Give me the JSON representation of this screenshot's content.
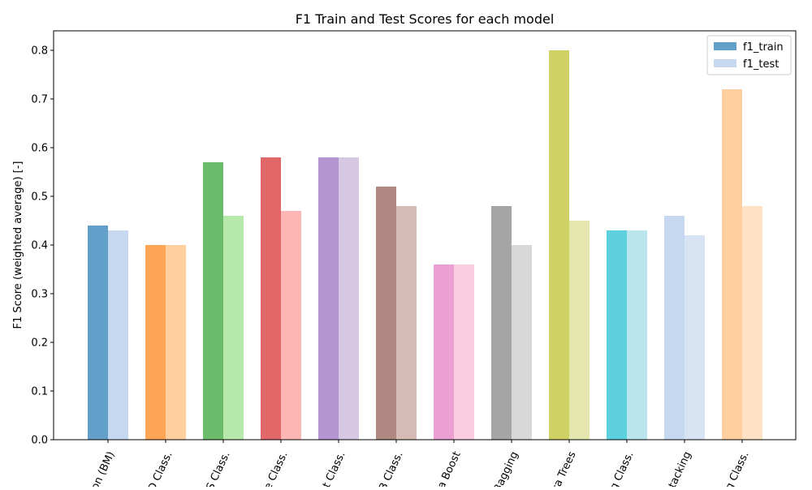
{
  "chart_data": {
    "type": "bar",
    "title": "F1 Train and Test Scores for each model",
    "xlabel": "",
    "ylabel": "F1 Score (weighted average)  [-]",
    "ylim": [
      0,
      0.84
    ],
    "yticks": [
      0.0,
      0.1,
      0.2,
      0.3,
      0.4,
      0.5,
      0.6,
      0.7,
      0.8
    ],
    "ytick_labels": [
      "0.0",
      "0.1",
      "0.2",
      "0.3",
      "0.4",
      "0.5",
      "0.6",
      "0.7",
      "0.8"
    ],
    "categories": [
      "on (BM)",
      "D Class.",
      "S Class.",
      "e Class.",
      "t Class.",
      "B Class.",
      "a Boost",
      "Bagging",
      "ra Trees",
      "g Class.",
      "tacking",
      "g Class."
    ],
    "series": [
      {
        "name": "f1_train",
        "values": [
          0.44,
          0.4,
          0.57,
          0.58,
          0.58,
          0.52,
          0.36,
          0.48,
          0.8,
          0.43,
          0.46,
          0.72
        ]
      },
      {
        "name": "f1_test",
        "values": [
          0.43,
          0.4,
          0.46,
          0.47,
          0.58,
          0.48,
          0.36,
          0.4,
          0.45,
          0.43,
          0.42,
          0.48
        ]
      }
    ],
    "colors_train": [
      "#1f77b4",
      "#ff7f0e",
      "#2ca02c",
      "#d62728",
      "#9467bd",
      "#8c564b",
      "#e377c2",
      "#7f7f7f",
      "#bcbd22",
      "#17becf",
      "#aec7e8",
      "#ffbb78"
    ],
    "colors_test": [
      "#aec7e8",
      "#ffbb78",
      "#98df8a",
      "#ff9896",
      "#c5b0d5",
      "#c49c94",
      "#f7b6d2",
      "#c7c7c7",
      "#dbdb8d",
      "#9edae5",
      "#c6d5ee",
      "#ffd5ad"
    ],
    "legend": {
      "placement": "top-right",
      "entries": [
        "f1_train",
        "f1_test"
      ],
      "colors": [
        "#1f77b4",
        "#aec7e8"
      ]
    },
    "grid": false
  }
}
